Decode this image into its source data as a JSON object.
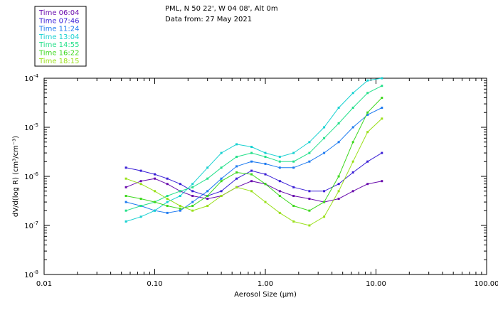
{
  "chart_data": {
    "type": "line",
    "title_line1": "PML, N 50 22', W 04 08', Alt 0m",
    "title_line2": "Data from: 27 May 2021",
    "xlabel_prefix": "Aerosol Size (",
    "xlabel_unit": "µm",
    "xlabel_suffix": ")",
    "ylabel": "dV/d(log R) (cm³/cm⁻³)",
    "xscale": "log",
    "yscale": "log",
    "xlim": [
      0.01,
      100.0
    ],
    "ylim": [
      1e-08,
      0.0001
    ],
    "x_ticks": [
      {
        "value": 0.01,
        "label": "0.01"
      },
      {
        "value": 0.1,
        "label": "0.10"
      },
      {
        "value": 1.0,
        "label": "1.00"
      },
      {
        "value": 10.0,
        "label": "10.00"
      },
      {
        "value": 100.0,
        "label": "100.00"
      }
    ],
    "y_ticks": [
      {
        "value": 1e-08,
        "base": "10",
        "exp": "-8"
      },
      {
        "value": 1e-07,
        "base": "10",
        "exp": "-7"
      },
      {
        "value": 1e-06,
        "base": "10",
        "exp": "-6"
      },
      {
        "value": 1e-05,
        "base": "10",
        "exp": "-5"
      },
      {
        "value": 0.0001,
        "base": "10",
        "exp": "-4"
      }
    ],
    "legend_position": "top-left",
    "x": [
      0.055,
      0.075,
      0.1,
      0.13,
      0.17,
      0.22,
      0.3,
      0.4,
      0.55,
      0.75,
      1.0,
      1.35,
      1.8,
      2.5,
      3.4,
      4.6,
      6.2,
      8.4,
      11.3
    ],
    "series": [
      {
        "name": "Time 06:04",
        "color": "#6a0dad",
        "values": [
          6e-07,
          8e-07,
          9e-07,
          7e-07,
          5e-07,
          4e-07,
          3.5e-07,
          4e-07,
          6e-07,
          8e-07,
          7e-07,
          5e-07,
          4e-07,
          3.5e-07,
          3e-07,
          3.5e-07,
          5e-07,
          7e-07,
          8e-07
        ]
      },
      {
        "name": "Time 07:46",
        "color": "#3a1fd6",
        "values": [
          1.5e-06,
          1.3e-06,
          1.1e-06,
          9e-07,
          7e-07,
          5e-07,
          4e-07,
          5e-07,
          9e-07,
          1.3e-06,
          1.1e-06,
          8e-07,
          6e-07,
          5e-07,
          5e-07,
          7e-07,
          1.2e-06,
          2e-06,
          3e-06
        ]
      },
      {
        "name": "Time 11:24",
        "color": "#1e7bf0",
        "values": [
          3e-07,
          2.5e-07,
          2e-07,
          1.8e-07,
          2e-07,
          3e-07,
          5e-07,
          9e-07,
          1.6e-06,
          2e-06,
          1.8e-06,
          1.5e-06,
          1.5e-06,
          2e-06,
          3e-06,
          5e-06,
          1e-05,
          1.8e-05,
          2.5e-05
        ]
      },
      {
        "name": "Time 13:04",
        "color": "#19d1d1",
        "values": [
          1.2e-07,
          1.5e-07,
          2e-07,
          3e-07,
          4e-07,
          7e-07,
          1.5e-06,
          3e-06,
          4.5e-06,
          4e-06,
          3e-06,
          2.5e-06,
          3e-06,
          5e-06,
          1e-05,
          2.5e-05,
          5e-05,
          9e-05,
          0.0001
        ]
      },
      {
        "name": "Time 14:55",
        "color": "#24e08a",
        "values": [
          2e-07,
          2.5e-07,
          3e-07,
          4e-07,
          5e-07,
          6e-07,
          9e-07,
          1.5e-06,
          2.5e-06,
          3e-06,
          2.5e-06,
          2e-06,
          2e-06,
          3e-06,
          6e-06,
          1.2e-05,
          2.5e-05,
          5e-05,
          7e-05
        ]
      },
      {
        "name": "Time 16:22",
        "color": "#3ed81f",
        "values": [
          4e-07,
          3.5e-07,
          3e-07,
          2.5e-07,
          2.2e-07,
          2.5e-07,
          4e-07,
          8e-07,
          1.2e-06,
          1.1e-06,
          7e-07,
          4e-07,
          2.5e-07,
          2e-07,
          3e-07,
          1e-06,
          5e-06,
          2e-05,
          4e-05
        ]
      },
      {
        "name": "Time 18:15",
        "color": "#9ae01a",
        "values": [
          9e-07,
          7e-07,
          5e-07,
          3.5e-07,
          2.5e-07,
          2e-07,
          2.5e-07,
          4e-07,
          6e-07,
          5e-07,
          3e-07,
          1.8e-07,
          1.2e-07,
          1e-07,
          1.5e-07,
          5e-07,
          2e-06,
          8e-06,
          1.5e-05
        ]
      }
    ]
  }
}
